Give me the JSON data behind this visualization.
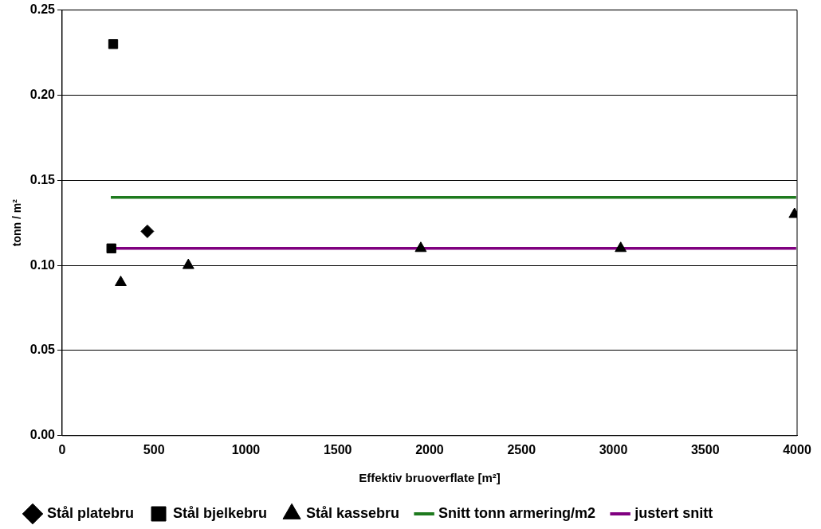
{
  "chart_data": {
    "type": "scatter",
    "xlabel": "Effektiv bruoverflate [m²]",
    "ylabel": "tonn / m²",
    "xlim": [
      0,
      4000
    ],
    "xticks": [
      0,
      500,
      1000,
      1500,
      2000,
      2500,
      3000,
      3500,
      4000
    ],
    "ylim": [
      0,
      0.25
    ],
    "yticks": [
      {
        "value": 0,
        "label": "0.00"
      },
      {
        "value": 0.05,
        "label": "0.05"
      },
      {
        "value": 0.1,
        "label": "0.10"
      },
      {
        "value": 0.15,
        "label": "0.15"
      },
      {
        "value": 0.2,
        "label": "0.20"
      },
      {
        "value": 0.25,
        "label": "0.25"
      }
    ],
    "grid": "y",
    "legend": "bottom",
    "series": [
      {
        "name": "Stål platebru",
        "color": "#000000",
        "marker": "diamond",
        "x": [
          464
        ],
        "values": [
          0.12
        ]
      },
      {
        "name": "Stål bjelkebru",
        "color": "#000000",
        "marker": "square",
        "x": [
          278,
          268
        ],
        "values": [
          0.23,
          0.11
        ]
      },
      {
        "name": "Stål kassebru",
        "color": "#000000",
        "marker": "triangle",
        "x": [
          319,
          687,
          1952,
          3040,
          3986
        ],
        "values": [
          0.09,
          0.1,
          0.11,
          0.11,
          0.13
        ]
      },
      {
        "name": "Snitt tonn armering/m2",
        "type": "line",
        "color": "#1e7a1e",
        "marker": "none",
        "x": [
          265,
          3995
        ],
        "values": [
          0.14,
          0.14
        ]
      },
      {
        "name": "justert snitt",
        "type": "line",
        "color": "#800080",
        "marker": "none",
        "x": [
          265,
          3995
        ],
        "values": [
          0.11,
          0.11
        ]
      }
    ]
  }
}
